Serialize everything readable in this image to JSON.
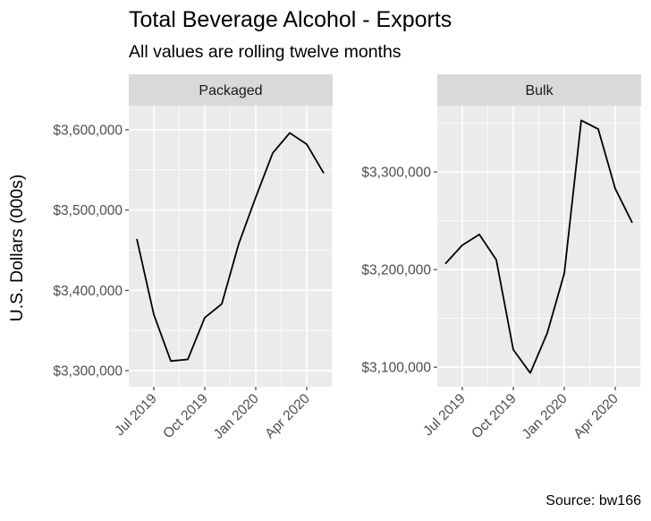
{
  "chart_data": {
    "type": "line",
    "title": "Total Beverage Alcohol - Exports",
    "subtitle": "All values are rolling twelve months",
    "ylabel": "U.S. Dollars (000s)",
    "caption": "Source: bw166",
    "x_ticks": [
      "Jul 2019",
      "Oct 2019",
      "Jan 2020",
      "Apr 2020"
    ],
    "x": [
      "2019-06",
      "2019-07",
      "2019-08",
      "2019-09",
      "2019-10",
      "2019-11",
      "2019-12",
      "2020-01",
      "2020-02",
      "2020-03",
      "2020-04",
      "2020-05"
    ],
    "panels": [
      {
        "name": "Packaged",
        "ylim": [
          3280000,
          3630000
        ],
        "y_ticks": [
          3300000,
          3400000,
          3500000,
          3600000
        ],
        "y_tick_labels": [
          "$3,300,000",
          "$3,400,000",
          "$3,500,000",
          "$3,600,000"
        ],
        "values": [
          3464000,
          3370000,
          3312000,
          3314000,
          3366000,
          3383000,
          3458000,
          3516000,
          3571000,
          3596000,
          3582000,
          3546000
        ]
      },
      {
        "name": "Bulk",
        "ylim": [
          3080000,
          3368000
        ],
        "y_ticks": [
          3100000,
          3200000,
          3300000
        ],
        "y_tick_labels": [
          "$3,100,000",
          "$3,200,000",
          "$3,300,000"
        ],
        "values": [
          3206000,
          3225000,
          3236000,
          3210000,
          3118000,
          3094000,
          3135000,
          3196000,
          3353000,
          3344000,
          3283000,
          3248000
        ]
      }
    ]
  }
}
